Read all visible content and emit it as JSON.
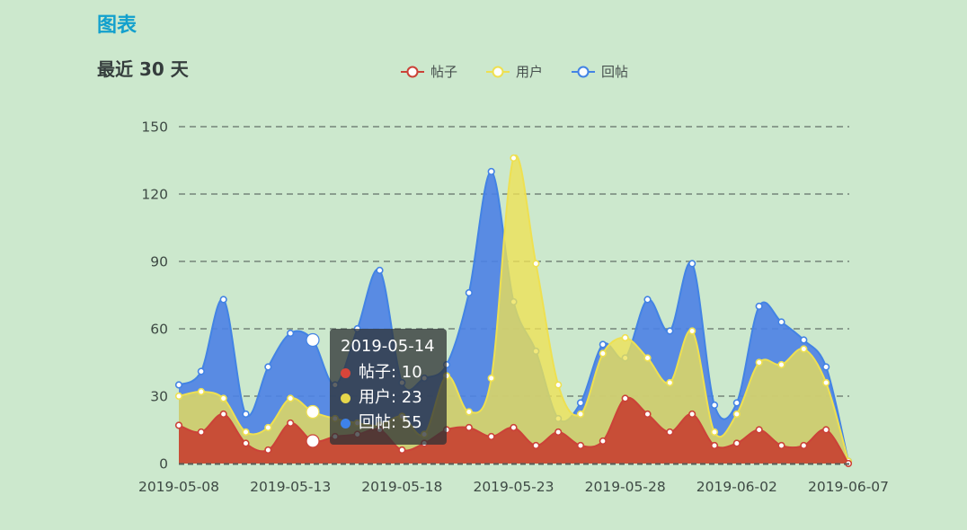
{
  "page": {
    "background": "#cce8cd"
  },
  "header": {
    "title": "图表"
  },
  "chart_data": {
    "type": "area",
    "title": "最近 30 天",
    "smooth": true,
    "grid": "dashed-horizontal",
    "legend_position": "top-center",
    "ylim": [
      0,
      150
    ],
    "yticks": [
      0,
      30,
      60,
      90,
      120,
      150
    ],
    "x": [
      "2019-05-08",
      "2019-05-09",
      "2019-05-10",
      "2019-05-11",
      "2019-05-12",
      "2019-05-13",
      "2019-05-14",
      "2019-05-15",
      "2019-05-16",
      "2019-05-17",
      "2019-05-18",
      "2019-05-19",
      "2019-05-20",
      "2019-05-21",
      "2019-05-22",
      "2019-05-23",
      "2019-05-24",
      "2019-05-25",
      "2019-05-26",
      "2019-05-27",
      "2019-05-28",
      "2019-05-29",
      "2019-05-30",
      "2019-05-31",
      "2019-06-01",
      "2019-06-02",
      "2019-06-03",
      "2019-06-04",
      "2019-06-05",
      "2019-06-06",
      "2019-06-07"
    ],
    "x_tick_indices": [
      0,
      5,
      10,
      15,
      20,
      25,
      30
    ],
    "x_tick_labels": [
      "2019-05-08",
      "2019-05-13",
      "2019-05-18",
      "2019-05-23",
      "2019-05-28",
      "2019-06-02",
      "2019-06-07"
    ],
    "series": [
      {
        "name": "帖子",
        "color": "#cb4238",
        "fill": "rgba(199,60,47,0.88)",
        "values": [
          17,
          14,
          22,
          9,
          6,
          18,
          10,
          12,
          13,
          15,
          6,
          9,
          15,
          16,
          12,
          16,
          8,
          14,
          8,
          10,
          29,
          22,
          14,
          22,
          8,
          9,
          15,
          8,
          8,
          15,
          0
        ]
      },
      {
        "name": "用户",
        "color": "#eee051",
        "fill": "rgba(238,226,84,0.78)",
        "values": [
          30,
          32,
          29,
          14,
          16,
          29,
          23,
          20,
          18,
          17,
          21,
          13,
          39,
          23,
          38,
          136,
          89,
          35,
          22,
          49,
          56,
          47,
          36,
          59,
          14,
          22,
          45,
          44,
          51,
          36,
          1
        ]
      },
      {
        "name": "回帖",
        "color": "#4383e4",
        "fill": "rgba(77,129,230,0.9)",
        "values": [
          35,
          41,
          73,
          22,
          43,
          58,
          55,
          35,
          60,
          86,
          36,
          38,
          44,
          76,
          130,
          72,
          50,
          20,
          27,
          53,
          47,
          73,
          59,
          89,
          26,
          27,
          70,
          63,
          55,
          43,
          1
        ]
      }
    ]
  },
  "tooltip": {
    "date": "2019-05-14",
    "highlight_index": 6,
    "rows": [
      {
        "label": "帖子",
        "value": 10,
        "text": "帖子: 10",
        "color": "#d8453a"
      },
      {
        "label": "用户",
        "value": 23,
        "text": "用户: 23",
        "color": "#e6d74b"
      },
      {
        "label": "回帖",
        "value": 55,
        "text": "回帖: 55",
        "color": "#3e82e8"
      }
    ]
  },
  "style": {
    "axis_label_color": "#3e4a44",
    "grid_line_color": "#75847a",
    "axis_line_color": "#57605a"
  }
}
